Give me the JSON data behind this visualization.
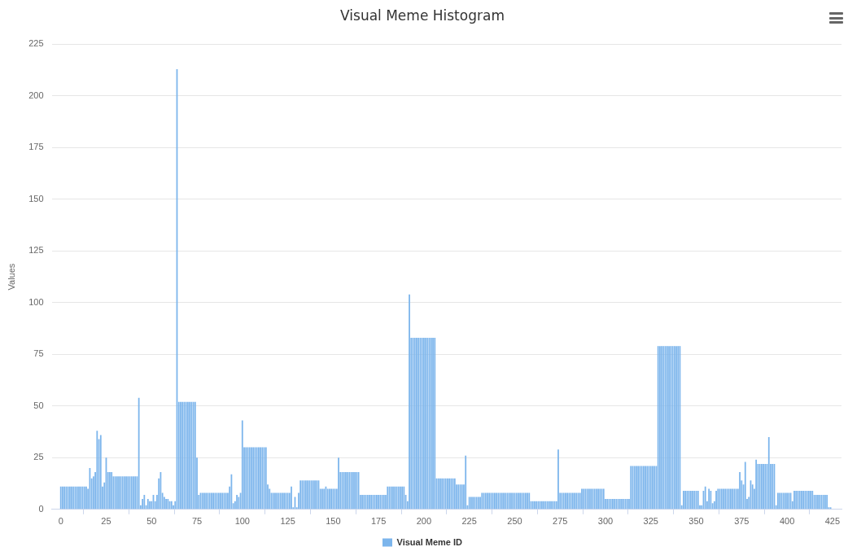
{
  "chart_data": {
    "type": "bar",
    "title": "Visual Meme Histogram",
    "ylabel": "Values",
    "legend": "bottom",
    "grid": "y",
    "xlim": [
      -5,
      430
    ],
    "xticks": [
      0,
      25,
      50,
      75,
      100,
      125,
      150,
      175,
      200,
      225,
      250,
      275,
      300,
      325,
      350,
      375,
      400,
      425
    ],
    "ylim": [
      0,
      225
    ],
    "yticks": [
      0,
      25,
      50,
      75,
      100,
      125,
      150,
      175,
      200,
      225
    ],
    "x": [
      0,
      1,
      2,
      3,
      4,
      5,
      6,
      7,
      8,
      9,
      10,
      11,
      12,
      13,
      14,
      15,
      16,
      17,
      18,
      19,
      20,
      21,
      22,
      23,
      24,
      25,
      26,
      27,
      28,
      29,
      30,
      31,
      32,
      33,
      34,
      35,
      36,
      37,
      38,
      39,
      40,
      41,
      42,
      43,
      44,
      45,
      46,
      47,
      48,
      49,
      50,
      51,
      52,
      53,
      54,
      55,
      56,
      57,
      58,
      59,
      60,
      61,
      62,
      63,
      64,
      65,
      66,
      67,
      68,
      69,
      70,
      71,
      72,
      73,
      74,
      75,
      76,
      77,
      78,
      79,
      80,
      81,
      82,
      83,
      84,
      85,
      86,
      87,
      88,
      89,
      90,
      91,
      92,
      93,
      94,
      95,
      96,
      97,
      98,
      99,
      100,
      101,
      102,
      103,
      104,
      105,
      106,
      107,
      108,
      109,
      110,
      111,
      112,
      113,
      114,
      115,
      116,
      117,
      118,
      119,
      120,
      121,
      122,
      123,
      124,
      125,
      126,
      127,
      128,
      129,
      130,
      131,
      132,
      133,
      134,
      135,
      136,
      137,
      138,
      139,
      140,
      141,
      142,
      143,
      144,
      145,
      146,
      147,
      148,
      149,
      150,
      151,
      152,
      153,
      154,
      155,
      156,
      157,
      158,
      159,
      160,
      161,
      162,
      163,
      164,
      165,
      166,
      167,
      168,
      169,
      170,
      171,
      172,
      173,
      174,
      175,
      176,
      177,
      178,
      179,
      180,
      181,
      182,
      183,
      184,
      185,
      186,
      187,
      188,
      189,
      190,
      191,
      192,
      193,
      194,
      195,
      196,
      197,
      198,
      199,
      200,
      201,
      202,
      203,
      204,
      205,
      206,
      207,
      208,
      209,
      210,
      211,
      212,
      213,
      214,
      215,
      216,
      217,
      218,
      219,
      220,
      221,
      222,
      223,
      224,
      225,
      226,
      227,
      228,
      229,
      230,
      231,
      232,
      233,
      234,
      235,
      236,
      237,
      238,
      239,
      240,
      241,
      242,
      243,
      244,
      245,
      246,
      247,
      248,
      249,
      250,
      251,
      252,
      253,
      254,
      255,
      256,
      257,
      258,
      259,
      260,
      261,
      262,
      263,
      264,
      265,
      266,
      267,
      268,
      269,
      270,
      271,
      272,
      273,
      274,
      275,
      276,
      277,
      278,
      279,
      280,
      281,
      282,
      283,
      284,
      285,
      286,
      287,
      288,
      289,
      290,
      291,
      292,
      293,
      294,
      295,
      296,
      297,
      298,
      299,
      300,
      301,
      302,
      303,
      304,
      305,
      306,
      307,
      308,
      309,
      310,
      311,
      312,
      313,
      314,
      315,
      316,
      317,
      318,
      319,
      320,
      321,
      322,
      323,
      324,
      325,
      326,
      327,
      328,
      329,
      330,
      331,
      332,
      333,
      334,
      335,
      336,
      337,
      338,
      339,
      340,
      341,
      342,
      343,
      344,
      345,
      346,
      347,
      348,
      349,
      350,
      351,
      352,
      353,
      354,
      355,
      356,
      357,
      358,
      359,
      360,
      361,
      362,
      363,
      364,
      365,
      366,
      367,
      368,
      369,
      370,
      371,
      372,
      373,
      374,
      375,
      376,
      377,
      378,
      379,
      380,
      381,
      382,
      383,
      384,
      385,
      386,
      387,
      388,
      389,
      390,
      391,
      392,
      393,
      394,
      395,
      396,
      397,
      398,
      399,
      400,
      401,
      402,
      403,
      404,
      405,
      406,
      407,
      408,
      409,
      410,
      411,
      412,
      413,
      414,
      415,
      416,
      417,
      418,
      419,
      420,
      421,
      422,
      423,
      424
    ],
    "series": [
      {
        "name": "Visual Meme ID",
        "color": "#7cb5ec",
        "values": [
          11,
          11,
          11,
          11,
          11,
          11,
          11,
          11,
          11,
          11,
          11,
          11,
          11,
          11,
          11,
          10,
          20,
          15,
          16,
          18,
          38,
          34,
          36,
          11,
          13,
          25,
          18,
          18,
          18,
          16,
          16,
          16,
          16,
          16,
          16,
          16,
          16,
          16,
          16,
          16,
          16,
          16,
          16,
          54,
          2,
          5,
          7,
          2,
          5,
          4,
          4,
          7,
          4,
          7,
          15,
          18,
          8,
          6,
          5,
          5,
          4,
          4,
          2,
          4,
          213,
          52,
          52,
          52,
          52,
          52,
          52,
          52,
          52,
          52,
          52,
          25,
          7,
          8,
          8,
          8,
          8,
          8,
          8,
          8,
          8,
          8,
          8,
          8,
          8,
          8,
          8,
          8,
          8,
          11,
          17,
          3,
          4,
          7,
          6,
          8,
          43,
          30,
          30,
          30,
          30,
          30,
          30,
          30,
          30,
          30,
          30,
          30,
          30,
          30,
          12,
          10,
          8,
          8,
          8,
          8,
          8,
          8,
          8,
          8,
          8,
          8,
          8,
          11,
          1,
          6,
          1,
          8,
          14,
          14,
          14,
          14,
          14,
          14,
          14,
          14,
          14,
          14,
          14,
          10,
          10,
          10,
          11,
          10,
          10,
          10,
          10,
          10,
          10,
          25,
          18,
          18,
          18,
          18,
          18,
          18,
          18,
          18,
          18,
          18,
          18,
          7,
          7,
          7,
          7,
          7,
          7,
          7,
          7,
          7,
          7,
          7,
          7,
          7,
          7,
          7,
          11,
          11,
          11,
          11,
          11,
          11,
          11,
          11,
          11,
          11,
          7,
          4,
          104,
          83,
          83,
          83,
          83,
          83,
          83,
          83,
          83,
          83,
          83,
          83,
          83,
          83,
          83,
          15,
          15,
          15,
          15,
          15,
          15,
          15,
          15,
          15,
          15,
          15,
          12,
          12,
          12,
          12,
          12,
          26,
          2,
          6,
          6,
          6,
          6,
          6,
          6,
          6,
          8,
          8,
          8,
          8,
          8,
          8,
          8,
          8,
          8,
          8,
          8,
          8,
          8,
          8,
          8,
          8,
          8,
          8,
          8,
          8,
          8,
          8,
          8,
          8,
          8,
          8,
          8,
          4,
          4,
          4,
          4,
          4,
          4,
          4,
          4,
          4,
          4,
          4,
          4,
          4,
          4,
          4,
          29,
          8,
          8,
          8,
          8,
          8,
          8,
          8,
          8,
          8,
          8,
          8,
          8,
          10,
          10,
          10,
          10,
          10,
          10,
          10,
          10,
          10,
          10,
          10,
          10,
          10,
          5,
          5,
          5,
          5,
          5,
          5,
          5,
          5,
          5,
          5,
          5,
          5,
          5,
          5,
          21,
          21,
          21,
          21,
          21,
          21,
          21,
          21,
          21,
          21,
          21,
          21,
          21,
          21,
          21,
          79,
          79,
          79,
          79,
          79,
          79,
          79,
          79,
          79,
          79,
          79,
          79,
          79,
          2,
          9,
          9,
          9,
          9,
          9,
          9,
          9,
          9,
          9,
          2,
          2,
          9,
          11,
          4,
          10,
          9,
          3,
          4,
          9,
          10,
          10,
          10,
          10,
          10,
          10,
          10,
          10,
          10,
          10,
          10,
          10,
          18,
          14,
          12,
          23,
          5,
          6,
          14,
          12,
          10,
          24,
          22,
          22,
          22,
          22,
          22,
          22,
          35,
          22,
          22,
          22,
          2,
          8,
          8,
          8,
          8,
          8,
          8,
          8,
          8,
          4,
          9,
          9,
          9,
          9,
          9,
          9,
          9,
          9,
          9,
          9,
          9,
          7,
          7,
          7,
          7,
          7,
          7,
          7,
          7,
          1,
          1
        ]
      }
    ]
  }
}
